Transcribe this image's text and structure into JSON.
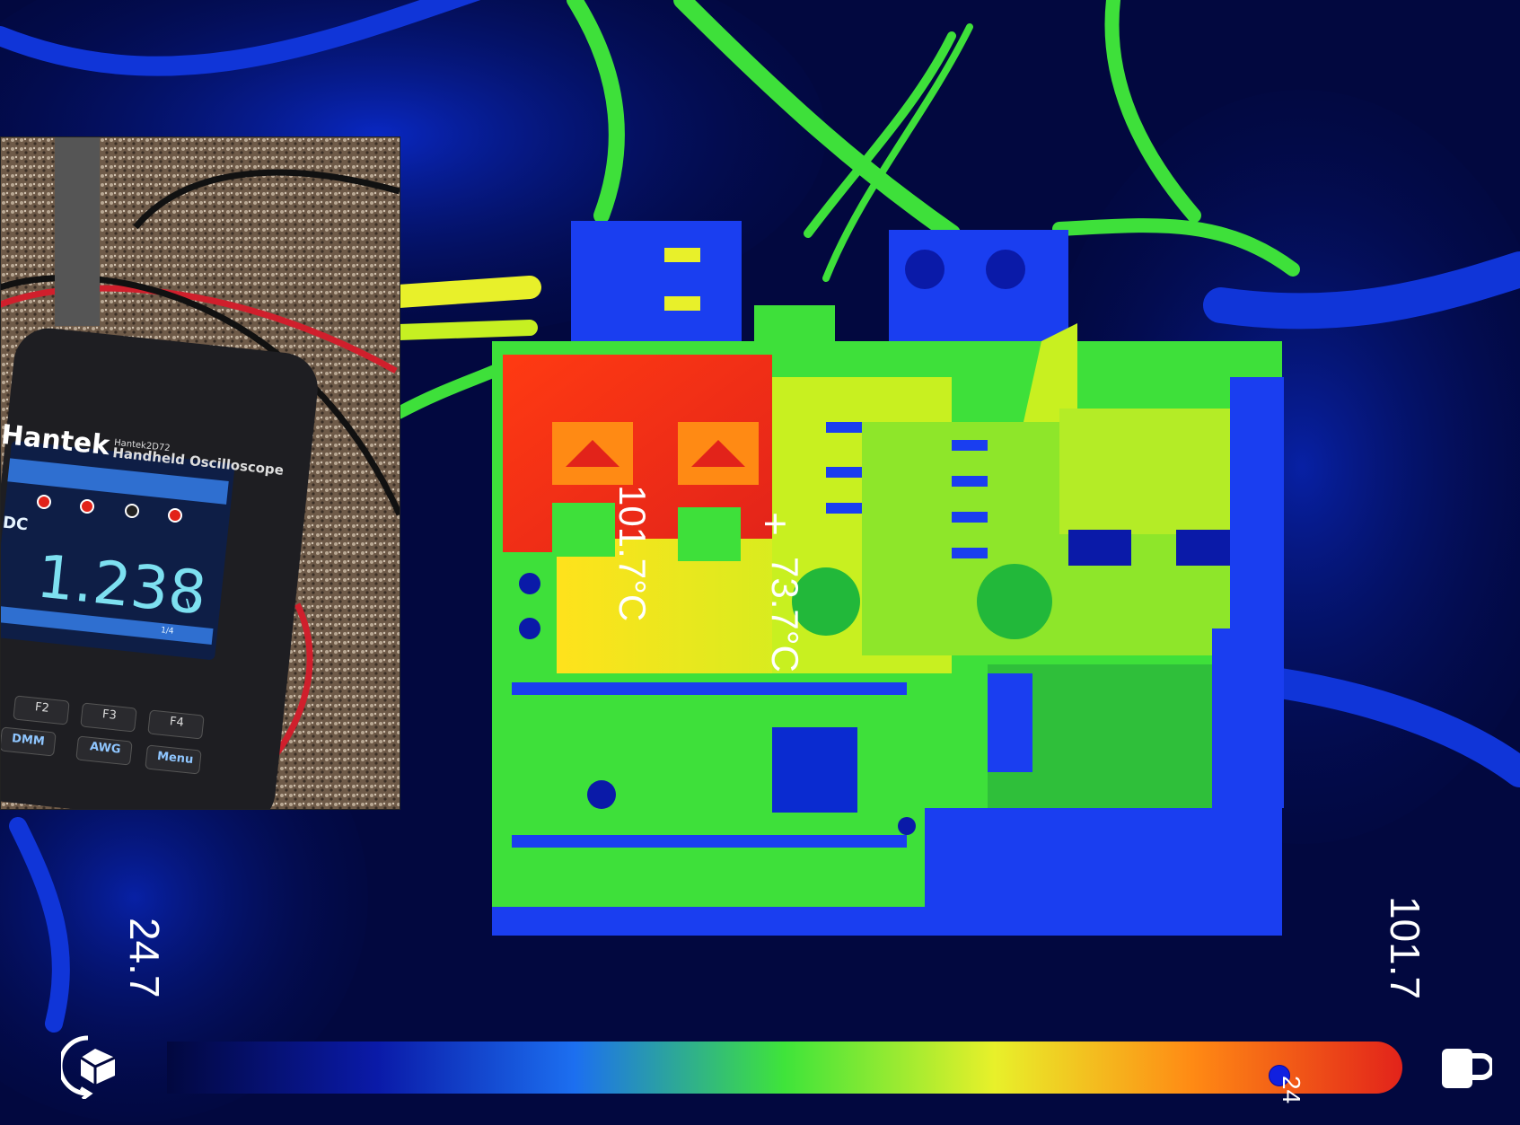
{
  "thermal": {
    "max_spot_label": "101.7°C",
    "center_spot_label": "73.7°C",
    "crosshair_glyph": "+",
    "palette_colors": [
      "#02083f",
      "#0a1aa8",
      "#1c6ff0",
      "#3fe43a",
      "#e8f02a",
      "#ff8a14",
      "#e2231a"
    ]
  },
  "scale": {
    "min_label": "24.7",
    "max_label": "101.7",
    "marker_label": "24",
    "marker_level": 0.9
  },
  "icons": {
    "left": "rotate-3d-icon",
    "right": "lock-icon"
  },
  "inset_photo": {
    "brand": "Hantek",
    "model": "Hantek2D72",
    "product": "Handheld Oscilloscope",
    "mode": "DC",
    "reading": "1.238",
    "unit": "V",
    "page": "1/4",
    "keys": [
      "F2",
      "F3",
      "F4",
      "DMM",
      "AWG",
      "Menu"
    ]
  }
}
